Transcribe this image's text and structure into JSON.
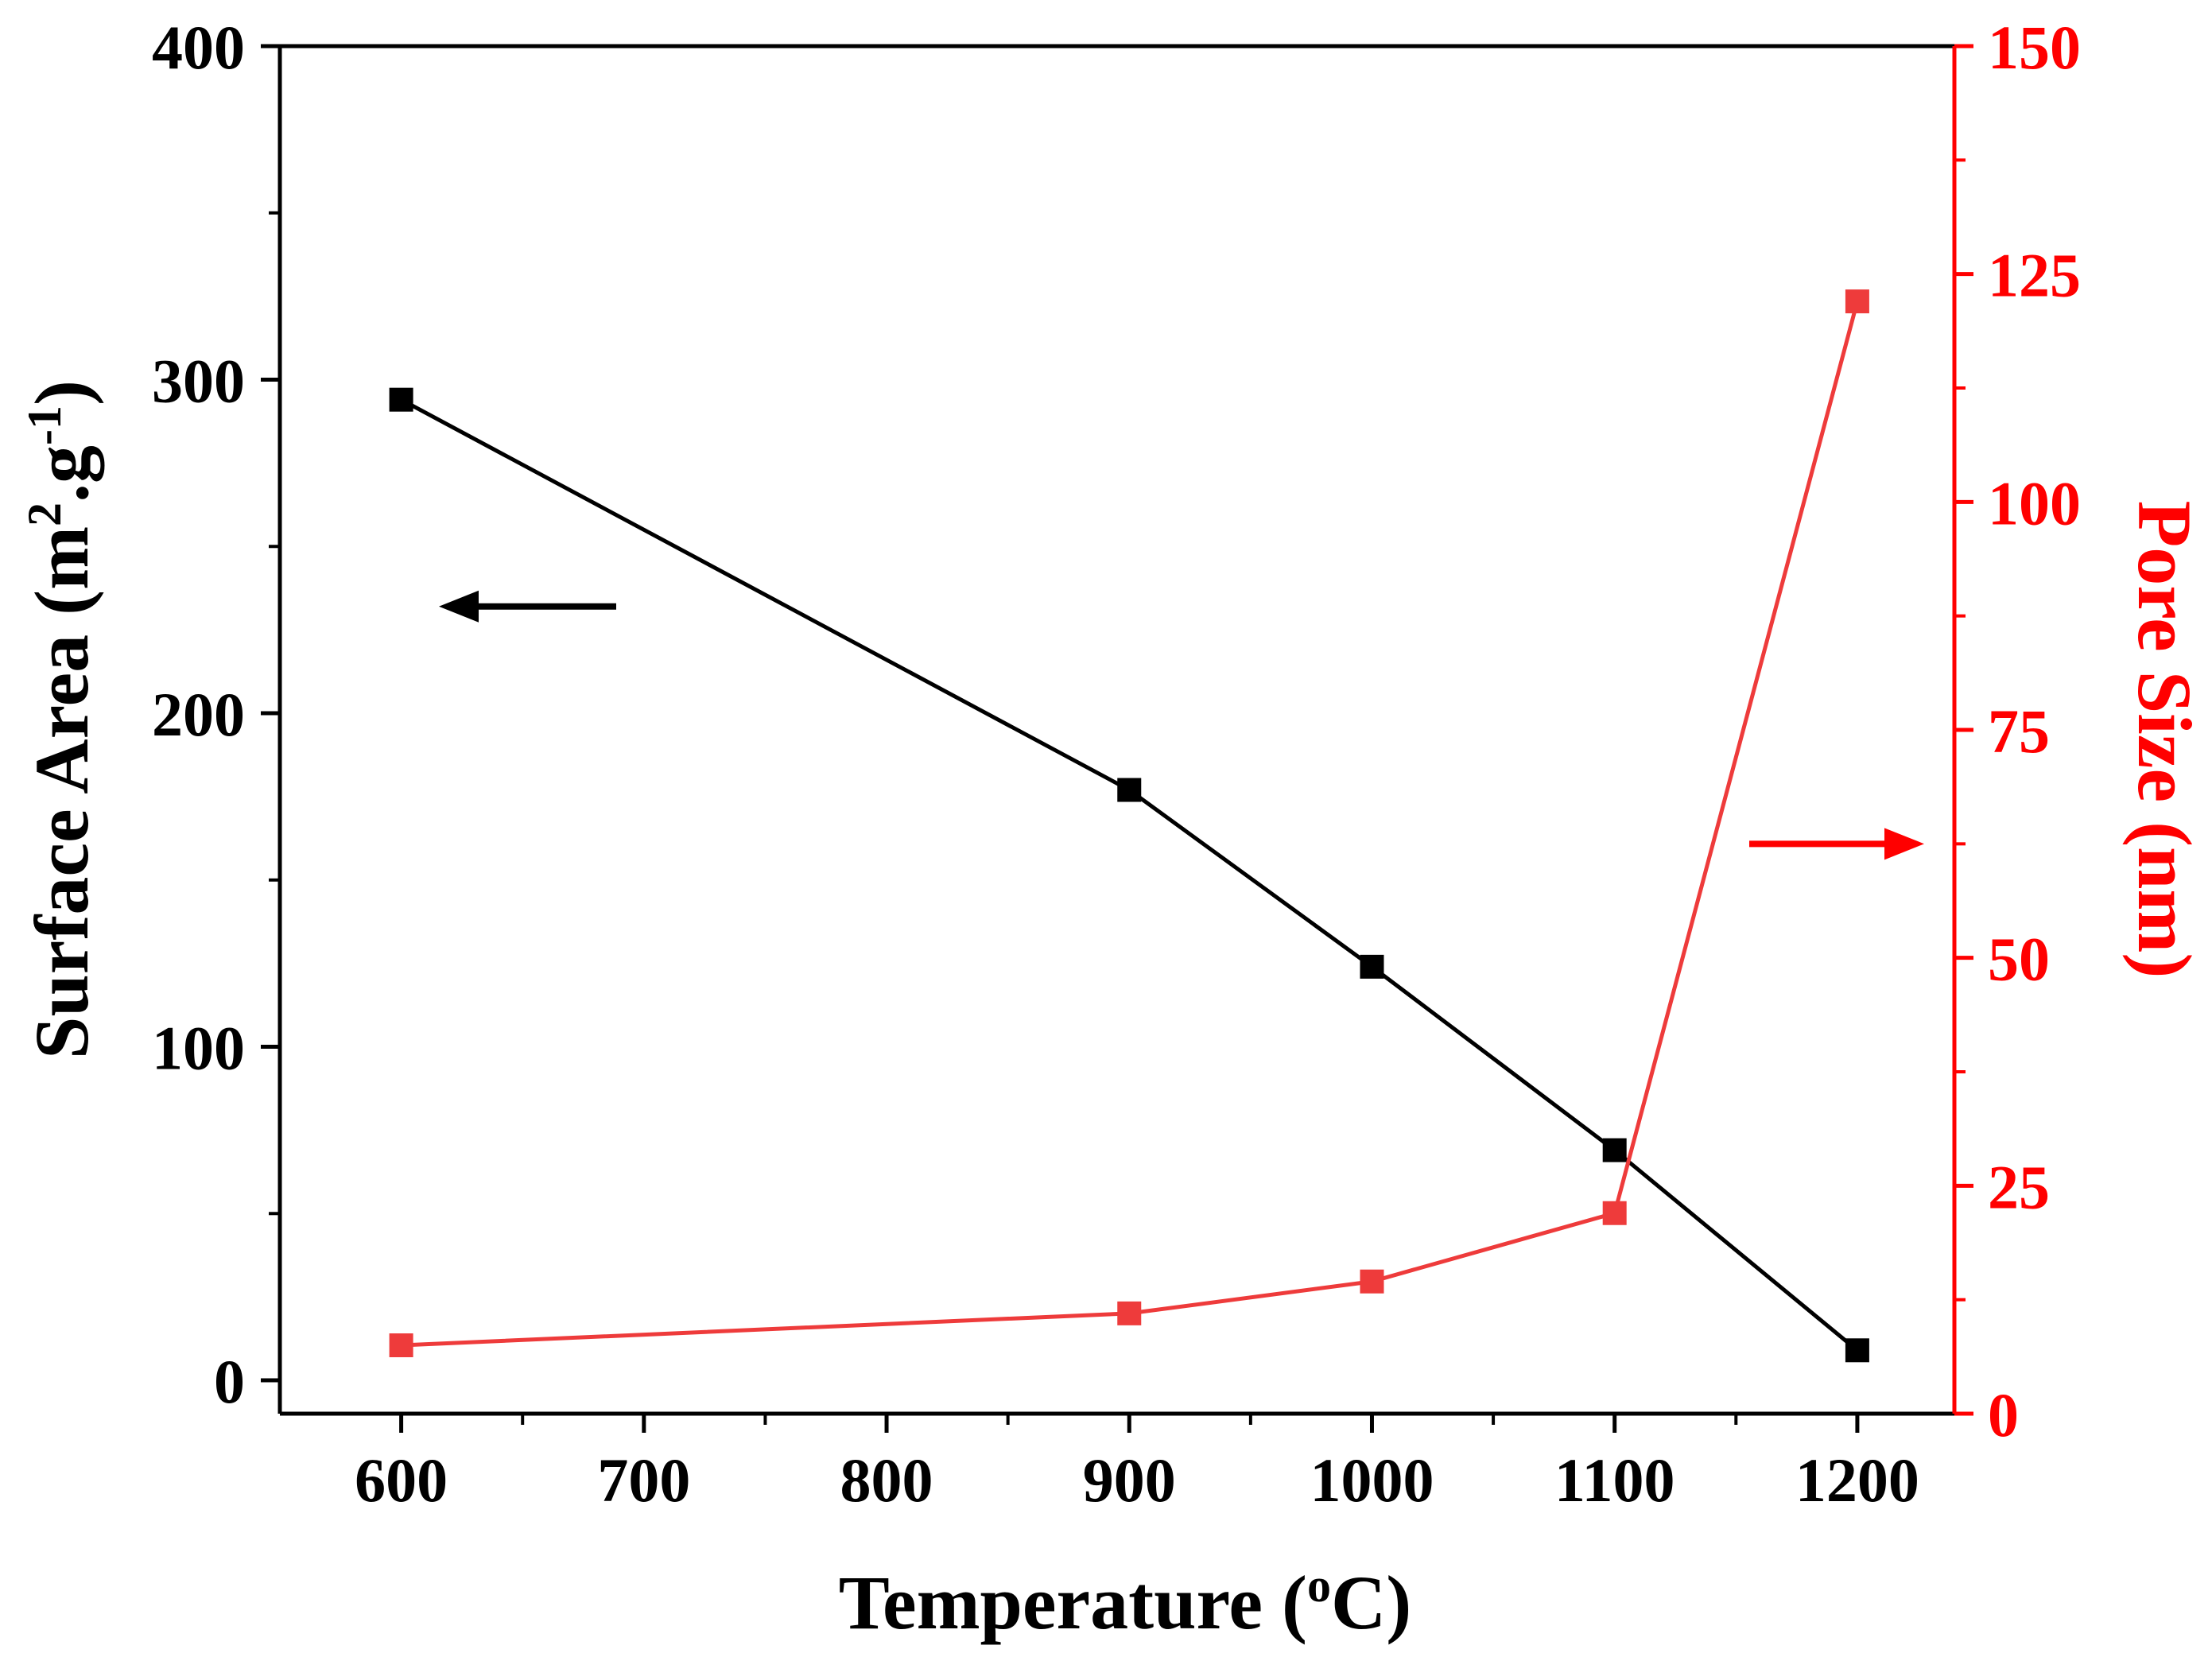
{
  "chart_data": {
    "type": "line",
    "xlabel": "Temperature (",
    "xlabel_sup": "o",
    "xlabel_suffix": "C)",
    "y_left_label_main": "Surface Area (m",
    "y_left_label_sup1": "2",
    "y_left_label_mid": ".g",
    "y_left_label_sup2": "-1",
    "y_left_label_end": ")",
    "y_right_label": "Pore Size (nm)",
    "xlim": [
      550,
      1240
    ],
    "ylim_left": [
      -10,
      400
    ],
    "ylim_right": [
      0,
      150
    ],
    "x_ticks": [
      600,
      700,
      800,
      900,
      1000,
      1100,
      1200
    ],
    "x_tick_labels": [
      "600",
      "700",
      "800",
      "900",
      "1000",
      "1100",
      "1200"
    ],
    "y_left_ticks": [
      0,
      100,
      200,
      300,
      400
    ],
    "y_left_tick_labels": [
      "0",
      "100",
      "200",
      "300",
      "400"
    ],
    "y_right_ticks": [
      0,
      25,
      50,
      75,
      100,
      125,
      150
    ],
    "y_right_tick_labels": [
      "0",
      "25",
      "50",
      "75",
      "100",
      "125",
      "150"
    ],
    "series": [
      {
        "name": "Surface Area",
        "axis": "left",
        "color": "#000000",
        "x": [
          600,
          900,
          1000,
          1100,
          1200
        ],
        "values": [
          294,
          177,
          124,
          69,
          9
        ]
      },
      {
        "name": "Pore Size",
        "axis": "right",
        "color": "#ee3b3b",
        "x": [
          600,
          900,
          1000,
          1100,
          1200
        ],
        "values": [
          7.5,
          11,
          14.5,
          22,
          122
        ]
      }
    ],
    "annotations": [
      {
        "type": "arrow",
        "direction": "left",
        "axis": "left",
        "color": "#000000"
      },
      {
        "type": "arrow",
        "direction": "right",
        "axis": "right",
        "color": "#ff0000"
      }
    ],
    "left_axis_color": "#000000",
    "right_axis_color": "#ff0000"
  }
}
